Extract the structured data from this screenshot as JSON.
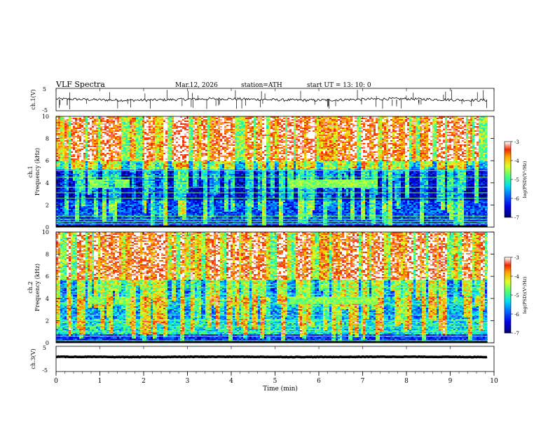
{
  "header": {
    "title": "VLF  Spectra",
    "date": "Mar.12, 2026",
    "station": "station=ATH",
    "start": "start  UT  =   13: 10: 0"
  },
  "chart_data": [
    {
      "type": "line",
      "panel": "ch1-waveform",
      "ylabel": "ch.1(V)",
      "yticks": [
        "5",
        "-5"
      ],
      "ylim": [
        -5,
        5
      ],
      "series": [
        {
          "x_range": [
            0,
            9.85
          ],
          "mean": 0.0,
          "noise": 0.6,
          "spikes": 60
        }
      ]
    },
    {
      "type": "heatmap",
      "panel": "ch1-spectrogram",
      "ylabel": "ch.1\nFrequency (kHz)",
      "yticks": [
        "0",
        "2",
        "4",
        "6",
        "8",
        "10"
      ],
      "ylim": [
        0,
        10
      ],
      "colorbar": {
        "label": "log(PSD)(V²/Hz)",
        "ticks": [
          "-3",
          "-4",
          "-5",
          "-6",
          "-7"
        ],
        "range": [
          -7,
          -3
        ]
      },
      "bands": [
        {
          "f0": 10,
          "f1": 6,
          "level": -4.6
        },
        {
          "f0": 6,
          "f1": 5.3,
          "level": -5.5
        },
        {
          "f0": 5.3,
          "f1": 3.5,
          "level": -6.5
        },
        {
          "f0": 3.5,
          "f1": 2.5,
          "level": -6.7
        },
        {
          "f0": 2.5,
          "f1": 0.8,
          "level": -6.0
        },
        {
          "f0": 0.8,
          "f1": 0,
          "level": -6.2
        }
      ],
      "lines_khz": [
        0.1,
        0.3,
        0.5,
        0.7,
        1.0,
        2.6,
        3.1,
        3.6,
        4.5,
        5.1
      ],
      "events": [
        {
          "t0": 0.75,
          "t1": 1.1,
          "f": 4.0
        },
        {
          "t0": 1.3,
          "t1": 1.65,
          "f": 4.0
        },
        {
          "t0": 5.3,
          "t1": 7.3,
          "f": 4.0
        }
      ]
    },
    {
      "type": "heatmap",
      "panel": "ch2-spectrogram",
      "ylabel": "ch.2\nFrequency (kHz)",
      "yticks": [
        "0",
        "2",
        "4",
        "6",
        "8",
        "10"
      ],
      "ylim": [
        0,
        10
      ],
      "colorbar": {
        "label": "log(PSD)(V²/Hz)",
        "ticks": [
          "-3",
          "-4",
          "-5",
          "-6",
          "-7"
        ],
        "range": [
          -7,
          -3
        ]
      },
      "bands": [
        {
          "f0": 10,
          "f1": 5.8,
          "level": -4.7
        },
        {
          "f0": 5.8,
          "f1": 4.2,
          "level": -5.8
        },
        {
          "f0": 4.2,
          "f1": 3.4,
          "level": -5.3
        },
        {
          "f0": 3.4,
          "f1": 2.2,
          "level": -5.6
        },
        {
          "f0": 2.2,
          "f1": 0.8,
          "level": -5.2
        },
        {
          "f0": 0.8,
          "f1": 0,
          "level": -6.2
        }
      ],
      "lines_khz": [
        0.2,
        0.6,
        1.0,
        1.5,
        2.0,
        2.5,
        3.5,
        4.4,
        5.0
      ],
      "events": [
        {
          "t0": 0.75,
          "t1": 1.1,
          "f": 3.9
        },
        {
          "t0": 1.3,
          "t1": 1.65,
          "f": 3.9
        },
        {
          "t0": 5.3,
          "t1": 7.3,
          "f": 3.9
        }
      ]
    },
    {
      "type": "line",
      "panel": "ch3-waveform",
      "ylabel": "ch.3(V)",
      "yticks": [
        "5",
        "-5"
      ],
      "ylim": [
        -5,
        5
      ],
      "series": [
        {
          "x_range": [
            0,
            9.85
          ],
          "mean": 0.8,
          "noise": 0.1,
          "spikes": 0
        }
      ]
    }
  ],
  "xaxis": {
    "label": "Time  (min)",
    "ticks": [
      "0",
      "1",
      "2",
      "3",
      "4",
      "5",
      "6",
      "7",
      "8",
      "9",
      "10"
    ],
    "xlim": [
      0,
      10
    ]
  }
}
